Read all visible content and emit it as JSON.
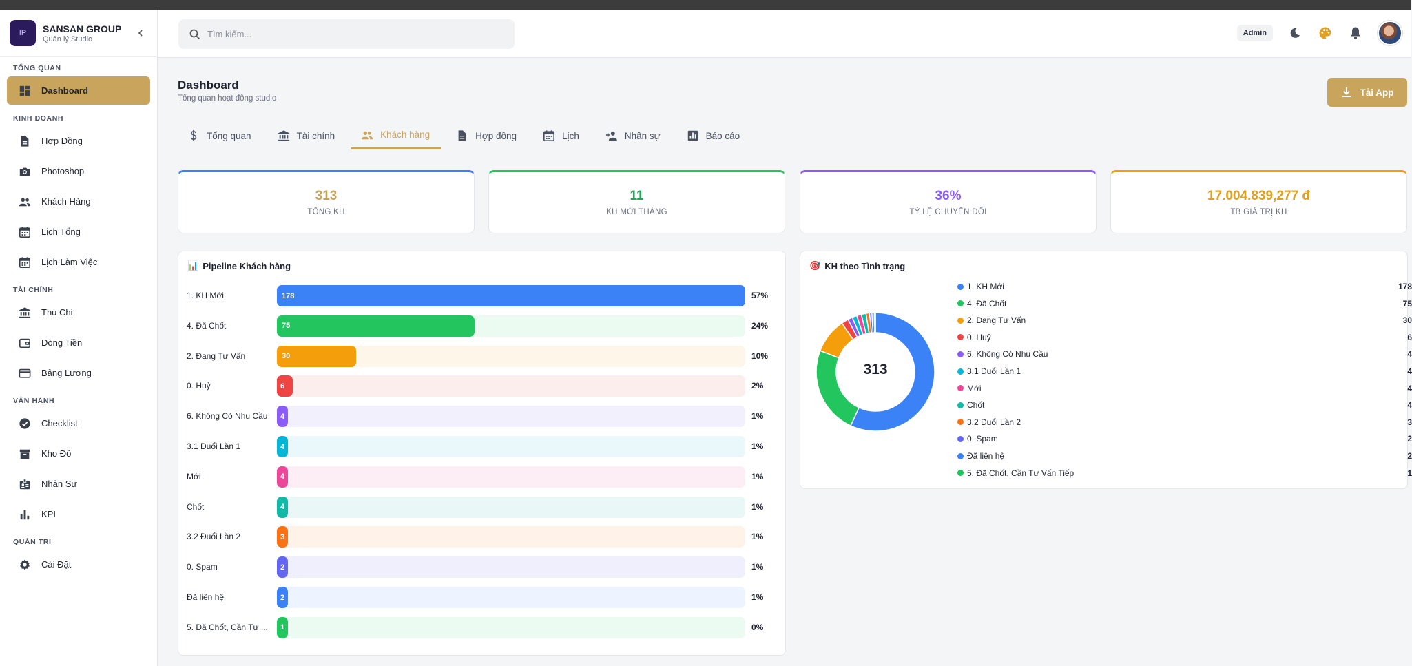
{
  "brand": {
    "name": "SANSAN GROUP",
    "subtitle": "Quản lý Studio",
    "logo_text": "IP"
  },
  "sidebar": {
    "sections": [
      {
        "title": "TỔNG QUAN",
        "items": [
          {
            "label": "Dashboard",
            "icon": "dashboard-icon",
            "active": true
          }
        ]
      },
      {
        "title": "KINH DOANH",
        "items": [
          {
            "label": "Hợp Đồng",
            "icon": "document-icon"
          },
          {
            "label": "Photoshop",
            "icon": "camera-icon"
          },
          {
            "label": "Khách Hàng",
            "icon": "people-icon"
          },
          {
            "label": "Lịch Tổng",
            "icon": "calendar-icon"
          },
          {
            "label": "Lịch Làm Việc",
            "icon": "calendar-icon"
          }
        ]
      },
      {
        "title": "TÀI CHÍNH",
        "items": [
          {
            "label": "Thu Chi",
            "icon": "bank-icon"
          },
          {
            "label": "Dòng Tiền",
            "icon": "wallet-icon"
          },
          {
            "label": "Bảng Lương",
            "icon": "credit-card-icon"
          }
        ]
      },
      {
        "title": "VẬN HÀNH",
        "items": [
          {
            "label": "Checklist",
            "icon": "check-circle-icon"
          },
          {
            "label": "Kho Đồ",
            "icon": "archive-icon"
          },
          {
            "label": "Nhân Sự",
            "icon": "badge-icon"
          },
          {
            "label": "KPI",
            "icon": "bar-chart-icon"
          }
        ]
      },
      {
        "title": "QUẢN TRỊ",
        "items": [
          {
            "label": "Cài Đặt",
            "icon": "gear-icon"
          }
        ]
      }
    ]
  },
  "header": {
    "search_placeholder": "Tìm kiếm...",
    "role": "Admin"
  },
  "page": {
    "title": "Dashboard",
    "subtitle": "Tổng quan hoạt động studio",
    "download_label": "Tải App"
  },
  "tabs": [
    {
      "label": "Tổng quan",
      "icon": "dollar-icon"
    },
    {
      "label": "Tài chính",
      "icon": "bank-icon"
    },
    {
      "label": "Khách hàng",
      "icon": "people-icon",
      "active": true
    },
    {
      "label": "Hợp đồng",
      "icon": "document-icon"
    },
    {
      "label": "Lịch",
      "icon": "calendar-icon"
    },
    {
      "label": "Nhân sự",
      "icon": "person-add-icon"
    },
    {
      "label": "Báo cáo",
      "icon": "report-icon"
    }
  ],
  "stats": [
    {
      "value": "313",
      "label": "TỔNG KH",
      "color": "#c9a45c",
      "accent": "#3b82f6"
    },
    {
      "value": "11",
      "label": "KH MỚI THÁNG",
      "color": "#22a55a",
      "accent": "#22c55e"
    },
    {
      "value": "36%",
      "label": "TỶ LỆ CHUYỂN ĐỔI",
      "color": "#8b5cf6",
      "accent": "#8b5cf6"
    },
    {
      "value": "17.004.839,277 đ",
      "label": "TB GIÁ TRỊ KH",
      "color": "#e0a020",
      "accent": "#f59e0b"
    }
  ],
  "pipeline": {
    "title": "Pipeline Khách hàng",
    "rows": [
      {
        "label": "1. KH Mới",
        "count": 178,
        "pct": "57%",
        "color": "#3b82f6",
        "track": "#eef4ff"
      },
      {
        "label": "4. Đã Chốt",
        "count": 75,
        "pct": "24%",
        "color": "#22c55e",
        "track": "#ecfbf1"
      },
      {
        "label": "2. Đang Tư Vấn",
        "count": 30,
        "pct": "10%",
        "color": "#f59e0b",
        "track": "#fef6e8"
      },
      {
        "label": "0. Huỷ",
        "count": 6,
        "pct": "2%",
        "color": "#ef4444",
        "track": "#fdeeee"
      },
      {
        "label": "6. Không Có Nhu Cầu",
        "count": 4,
        "pct": "1%",
        "color": "#8b5cf6",
        "track": "#f3f0fe"
      },
      {
        "label": "3.1 Đuổi Lần 1",
        "count": 4,
        "pct": "1%",
        "color": "#06b6d4",
        "track": "#eaf8fb"
      },
      {
        "label": "Mới",
        "count": 4,
        "pct": "1%",
        "color": "#ec4899",
        "track": "#fdeef5"
      },
      {
        "label": "Chốt",
        "count": 4,
        "pct": "1%",
        "color": "#14b8a6",
        "track": "#e9f8f6"
      },
      {
        "label": "3.2 Đuổi Lần 2",
        "count": 3,
        "pct": "1%",
        "color": "#f97316",
        "track": "#fef2e9"
      },
      {
        "label": "0. Spam",
        "count": 2,
        "pct": "1%",
        "color": "#6366f1",
        "track": "#efeffd"
      },
      {
        "label": "Đã liên hệ",
        "count": 2,
        "pct": "1%",
        "color": "#3b82f6",
        "track": "#eef4ff"
      },
      {
        "label": "5. Đã Chốt, Cần Tư ...",
        "count": 1,
        "pct": "0%",
        "color": "#22c55e",
        "track": "#ecfbf1"
      }
    ]
  },
  "status": {
    "title": "KH theo Tình trạng",
    "total": "313",
    "legend": [
      {
        "label": "1. KH Mới",
        "count": 178,
        "color": "#3b82f6"
      },
      {
        "label": "4. Đã Chốt",
        "count": 75,
        "color": "#22c55e"
      },
      {
        "label": "2. Đang Tư Vấn",
        "count": 30,
        "color": "#f59e0b"
      },
      {
        "label": "0. Huỷ",
        "count": 6,
        "color": "#ef4444"
      },
      {
        "label": "6. Không Có Nhu Cầu",
        "count": 4,
        "color": "#8b5cf6"
      },
      {
        "label": "3.1 Đuổi Lần 1",
        "count": 4,
        "color": "#06b6d4"
      },
      {
        "label": "Mới",
        "count": 4,
        "color": "#ec4899"
      },
      {
        "label": "Chốt",
        "count": 4,
        "color": "#14b8a6"
      },
      {
        "label": "3.2 Đuổi Lần 2",
        "count": 3,
        "color": "#f97316"
      },
      {
        "label": "0. Spam",
        "count": 2,
        "color": "#6366f1"
      },
      {
        "label": "Đã liên hệ",
        "count": 2,
        "color": "#3b82f6"
      },
      {
        "label": "5. Đã Chốt, Cần Tư Vấn Tiếp",
        "count": 1,
        "color": "#22c55e"
      }
    ]
  },
  "chart_data": [
    {
      "type": "bar",
      "categories": [
        "1. KH Mới",
        "4. Đã Chốt",
        "2. Đang Tư Vấn",
        "0. Huỷ",
        "6. Không Có Nhu Cầu",
        "3.1 Đuổi Lần 1",
        "Mới",
        "Chốt",
        "3.2 Đuổi Lần 2",
        "0. Spam",
        "Đã liên hệ",
        "5. Đã Chốt, Cần Tư ..."
      ],
      "values": [
        178,
        75,
        30,
        6,
        4,
        4,
        4,
        4,
        3,
        2,
        2,
        1
      ],
      "percent_labels": [
        "57%",
        "24%",
        "10%",
        "2%",
        "1%",
        "1%",
        "1%",
        "1%",
        "1%",
        "1%",
        "1%",
        "0%"
      ],
      "title": "Pipeline Khách hàng",
      "orientation": "horizontal"
    },
    {
      "type": "pie",
      "variant": "donut",
      "title": "KH theo Tình trạng",
      "center_label": "313",
      "categories": [
        "1. KH Mới",
        "4. Đã Chốt",
        "2. Đang Tư Vấn",
        "0. Huỷ",
        "6. Không Có Nhu Cầu",
        "3.1 Đuổi Lần 1",
        "Mới",
        "Chốt",
        "3.2 Đuổi Lần 2",
        "0. Spam",
        "Đã liên hệ",
        "5. Đã Chốt, Cần Tư Vấn Tiếp"
      ],
      "values": [
        178,
        75,
        30,
        6,
        4,
        4,
        4,
        4,
        3,
        2,
        2,
        1
      ],
      "legend_position": "right"
    }
  ]
}
